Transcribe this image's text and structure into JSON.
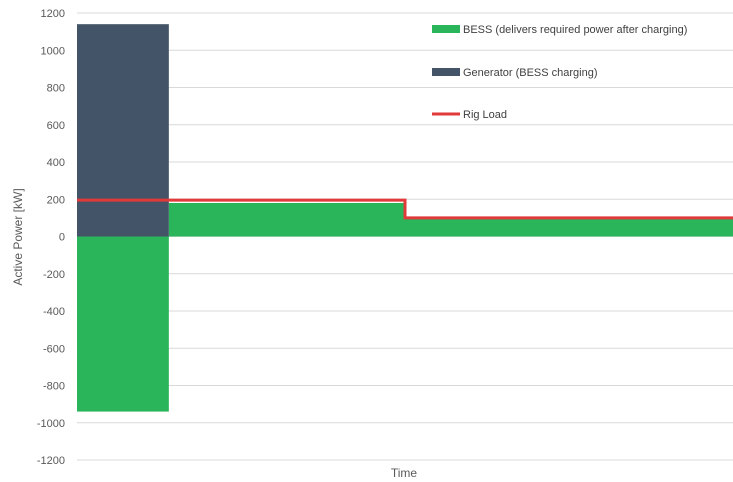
{
  "chart_data": {
    "type": "bar",
    "xlabel": "Time",
    "ylabel": "Active Power [kW]",
    "ylim": [
      -1200,
      1200
    ],
    "yticks": [
      1200,
      1000,
      800,
      600,
      400,
      200,
      0,
      -200,
      -400,
      -600,
      -800,
      -1000,
      -1200
    ],
    "grid": true,
    "legend_position": "top-right",
    "x_range": [
      0,
      100
    ],
    "series": [
      {
        "name": "BESS (delivers required power after charging)",
        "kind": "step-area",
        "color": "#2ab55a",
        "segments": [
          {
            "x_start": 0,
            "x_end": 14,
            "value": -940
          },
          {
            "x_start": 14,
            "x_end": 50,
            "value": 180
          },
          {
            "x_start": 50,
            "x_end": 100,
            "value": 100
          }
        ]
      },
      {
        "name": "Generator (BESS charging)",
        "kind": "step-area",
        "color": "#435468",
        "segments": [
          {
            "x_start": 0,
            "x_end": 14,
            "value": 1140
          }
        ]
      },
      {
        "name": "Rig Load",
        "kind": "step-line",
        "color": "#e03a3a",
        "segments": [
          {
            "x_start": 0,
            "x_end": 50,
            "value": 195
          },
          {
            "x_start": 50,
            "x_end": 100,
            "value": 100
          }
        ]
      }
    ]
  }
}
